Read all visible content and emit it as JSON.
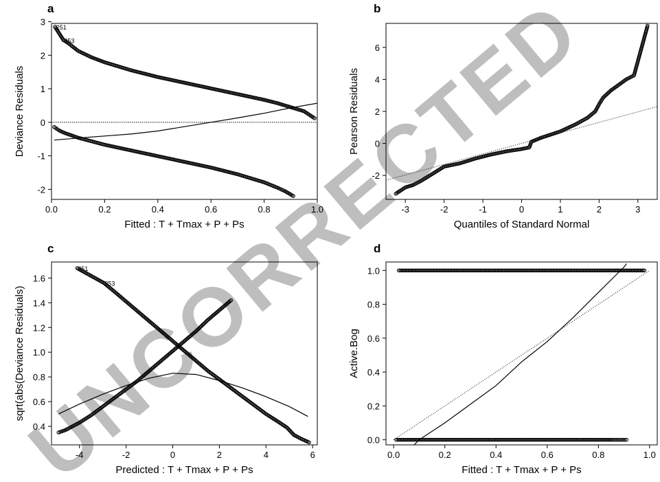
{
  "watermark": "UNCORRECTED",
  "chart_data": [
    {
      "panel": "a",
      "type": "scatter",
      "xlabel": "Fitted : T + Tmax + P + Ps",
      "ylabel": "Deviance Residuals",
      "xlim": [
        0.0,
        1.0
      ],
      "ylim": [
        -2.3,
        2.95
      ],
      "xticks": [
        0.0,
        0.2,
        0.4,
        0.6,
        0.8,
        1.0
      ],
      "yticks": [
        -2,
        -1,
        0,
        1,
        2,
        3
      ],
      "reference_line": {
        "type": "horizontal",
        "y": 0,
        "style": "dotted"
      },
      "annotations": [
        {
          "text": "251",
          "x": 0.015,
          "y": 2.85
        },
        {
          "text": "253",
          "x": 0.045,
          "y": 2.45
        }
      ],
      "series": [
        {
          "kind": "points",
          "branch": "upper",
          "points": [
            [
              0.013,
              2.85
            ],
            [
              0.045,
              2.45
            ],
            [
              0.06,
              2.38
            ],
            [
              0.1,
              2.13
            ],
            [
              0.15,
              1.94
            ],
            [
              0.2,
              1.79
            ],
            [
              0.3,
              1.55
            ],
            [
              0.4,
              1.35
            ],
            [
              0.5,
              1.18
            ],
            [
              0.6,
              1.01
            ],
            [
              0.7,
              0.84
            ],
            [
              0.8,
              0.67
            ],
            [
              0.85,
              0.57
            ],
            [
              0.9,
              0.45
            ],
            [
              0.95,
              0.33
            ],
            [
              0.99,
              0.12
            ]
          ]
        },
        {
          "kind": "points",
          "branch": "lower",
          "points": [
            [
              0.01,
              -0.14
            ],
            [
              0.03,
              -0.25
            ],
            [
              0.05,
              -0.32
            ],
            [
              0.1,
              -0.46
            ],
            [
              0.2,
              -0.67
            ],
            [
              0.3,
              -0.84
            ],
            [
              0.4,
              -1.01
            ],
            [
              0.5,
              -1.18
            ],
            [
              0.6,
              -1.35
            ],
            [
              0.7,
              -1.55
            ],
            [
              0.8,
              -1.79
            ],
            [
              0.85,
              -1.95
            ],
            [
              0.88,
              -2.06
            ],
            [
              0.91,
              -2.2
            ]
          ]
        },
        {
          "kind": "smooth",
          "points": [
            [
              0.01,
              -0.53
            ],
            [
              0.1,
              -0.47
            ],
            [
              0.2,
              -0.41
            ],
            [
              0.3,
              -0.35
            ],
            [
              0.4,
              -0.26
            ],
            [
              0.5,
              -0.13
            ],
            [
              0.6,
              0.0
            ],
            [
              0.7,
              0.13
            ],
            [
              0.8,
              0.27
            ],
            [
              0.9,
              0.43
            ],
            [
              1.0,
              0.57
            ]
          ]
        }
      ]
    },
    {
      "panel": "b",
      "type": "scatter",
      "xlabel": "Quantiles of Standard Normal",
      "ylabel": "Pearson Residuals",
      "xlim": [
        -3.5,
        3.5
      ],
      "ylim": [
        -3.5,
        7.5
      ],
      "xticks": [
        -3,
        -2,
        -1,
        0,
        1,
        2,
        3
      ],
      "yticks": [
        -2,
        0,
        2,
        4,
        6
      ],
      "reference_line": {
        "type": "line",
        "points": [
          [
            -3.5,
            -2.3
          ],
          [
            3.5,
            2.3
          ]
        ],
        "style": "dotted"
      },
      "series": [
        {
          "kind": "points",
          "points": [
            [
              -3.25,
              -3.15
            ],
            [
              -3.0,
              -2.75
            ],
            [
              -2.8,
              -2.6
            ],
            [
              -2.6,
              -2.35
            ],
            [
              -2.4,
              -2.05
            ],
            [
              -2.2,
              -1.75
            ],
            [
              -2.0,
              -1.45
            ],
            [
              -1.6,
              -1.25
            ],
            [
              -1.2,
              -0.95
            ],
            [
              -0.8,
              -0.7
            ],
            [
              -0.4,
              -0.5
            ],
            [
              0.0,
              -0.35
            ],
            [
              0.2,
              -0.25
            ],
            [
              0.25,
              0.1
            ],
            [
              0.5,
              0.35
            ],
            [
              1.0,
              0.75
            ],
            [
              1.4,
              1.2
            ],
            [
              1.7,
              1.6
            ],
            [
              1.9,
              2.0
            ],
            [
              2.0,
              2.45
            ],
            [
              2.1,
              2.85
            ],
            [
              2.3,
              3.3
            ],
            [
              2.5,
              3.65
            ],
            [
              2.7,
              4.0
            ],
            [
              2.9,
              4.25
            ],
            [
              3.25,
              7.35
            ]
          ]
        }
      ]
    },
    {
      "panel": "c",
      "type": "scatter",
      "xlabel": "Predicted : T + Tmax + P + Ps",
      "ylabel": "sqrt(abs(Deviance Residuals)",
      "xlim": [
        -5.2,
        6.2
      ],
      "ylim": [
        0.25,
        1.73
      ],
      "xticks": [
        -4,
        -2,
        0,
        2,
        4,
        6
      ],
      "yticks": [
        0.4,
        0.6,
        0.8,
        1.0,
        1.2,
        1.4,
        1.6
      ],
      "annotations": [
        {
          "text": "251",
          "x": -4.1,
          "y": 1.68
        },
        {
          "text": "253",
          "x": -2.95,
          "y": 1.56
        }
      ],
      "series": [
        {
          "kind": "points",
          "branch": "descending",
          "points": [
            [
              -4.1,
              1.68
            ],
            [
              -2.95,
              1.56
            ],
            [
              -2.5,
              1.49
            ],
            [
              -2.0,
              1.41
            ],
            [
              -1.5,
              1.33
            ],
            [
              -1.0,
              1.25
            ],
            [
              -0.5,
              1.17
            ],
            [
              0.0,
              1.09
            ],
            [
              0.5,
              1.01
            ],
            [
              1.0,
              0.93
            ],
            [
              1.5,
              0.85
            ],
            [
              2.0,
              0.78
            ],
            [
              2.5,
              0.71
            ],
            [
              3.0,
              0.64
            ],
            [
              3.5,
              0.57
            ],
            [
              4.0,
              0.5
            ],
            [
              4.5,
              0.44
            ],
            [
              4.9,
              0.39
            ],
            [
              5.2,
              0.33
            ],
            [
              5.5,
              0.3
            ],
            [
              5.85,
              0.27
            ]
          ]
        },
        {
          "kind": "points",
          "branch": "ascending",
          "points": [
            [
              -4.9,
              0.35
            ],
            [
              -4.6,
              0.37
            ],
            [
              -4.0,
              0.43
            ],
            [
              -3.5,
              0.49
            ],
            [
              -3.0,
              0.56
            ],
            [
              -2.5,
              0.63
            ],
            [
              -2.0,
              0.7
            ],
            [
              -1.5,
              0.77
            ],
            [
              -1.0,
              0.85
            ],
            [
              -0.5,
              0.93
            ],
            [
              0.0,
              1.01
            ],
            [
              0.5,
              1.09
            ],
            [
              1.0,
              1.17
            ],
            [
              1.5,
              1.26
            ],
            [
              2.0,
              1.34
            ],
            [
              2.5,
              1.42
            ]
          ]
        },
        {
          "kind": "smooth",
          "points": [
            [
              -4.9,
              0.5
            ],
            [
              -4.0,
              0.58
            ],
            [
              -3.0,
              0.66
            ],
            [
              -2.0,
              0.73
            ],
            [
              -1.0,
              0.79
            ],
            [
              0.0,
              0.83
            ],
            [
              1.0,
              0.82
            ],
            [
              2.0,
              0.77
            ],
            [
              3.0,
              0.71
            ],
            [
              4.0,
              0.64
            ],
            [
              5.0,
              0.56
            ],
            [
              5.8,
              0.48
            ]
          ]
        }
      ]
    },
    {
      "panel": "d",
      "type": "scatter",
      "xlabel": "Fitted : T + Tmax + P + Ps",
      "ylabel": "Active.Bog",
      "xlim": [
        -0.03,
        1.03
      ],
      "ylim": [
        -0.03,
        1.05
      ],
      "xticks": [
        0.0,
        0.2,
        0.4,
        0.6,
        0.8,
        1.0
      ],
      "yticks": [
        0.0,
        0.2,
        0.4,
        0.6,
        0.8,
        1.0
      ],
      "reference_line": {
        "type": "line",
        "points": [
          [
            0.0,
            0.0
          ],
          [
            1.0,
            1.0
          ]
        ],
        "style": "dotted"
      },
      "series": [
        {
          "kind": "points",
          "branch": "observed-1",
          "points": [
            [
              0.02,
              1.0
            ],
            [
              0.06,
              1.0
            ],
            [
              0.1,
              1.0
            ],
            [
              0.2,
              1.0
            ],
            [
              0.3,
              1.0
            ],
            [
              0.4,
              1.0
            ],
            [
              0.5,
              1.0
            ],
            [
              0.6,
              1.0
            ],
            [
              0.7,
              1.0
            ],
            [
              0.8,
              1.0
            ],
            [
              0.9,
              1.0
            ],
            [
              0.98,
              1.0
            ]
          ]
        },
        {
          "kind": "points",
          "branch": "observed-0",
          "points": [
            [
              0.01,
              0.0
            ],
            [
              0.05,
              0.0
            ],
            [
              0.1,
              0.0
            ],
            [
              0.2,
              0.0
            ],
            [
              0.3,
              0.0
            ],
            [
              0.4,
              0.0
            ],
            [
              0.5,
              0.0
            ],
            [
              0.6,
              0.0
            ],
            [
              0.7,
              0.0
            ],
            [
              0.8,
              0.0
            ],
            [
              0.85,
              0.0
            ],
            [
              0.88,
              0.0
            ],
            [
              0.91,
              0.0
            ]
          ]
        },
        {
          "kind": "smooth",
          "points": [
            [
              0.08,
              -0.03
            ],
            [
              0.1,
              0.0
            ],
            [
              0.2,
              0.1
            ],
            [
              0.3,
              0.21
            ],
            [
              0.4,
              0.32
            ],
            [
              0.5,
              0.46
            ],
            [
              0.6,
              0.58
            ],
            [
              0.7,
              0.72
            ],
            [
              0.8,
              0.87
            ],
            [
              0.9,
              1.02
            ],
            [
              0.91,
              1.04
            ]
          ]
        }
      ]
    }
  ]
}
